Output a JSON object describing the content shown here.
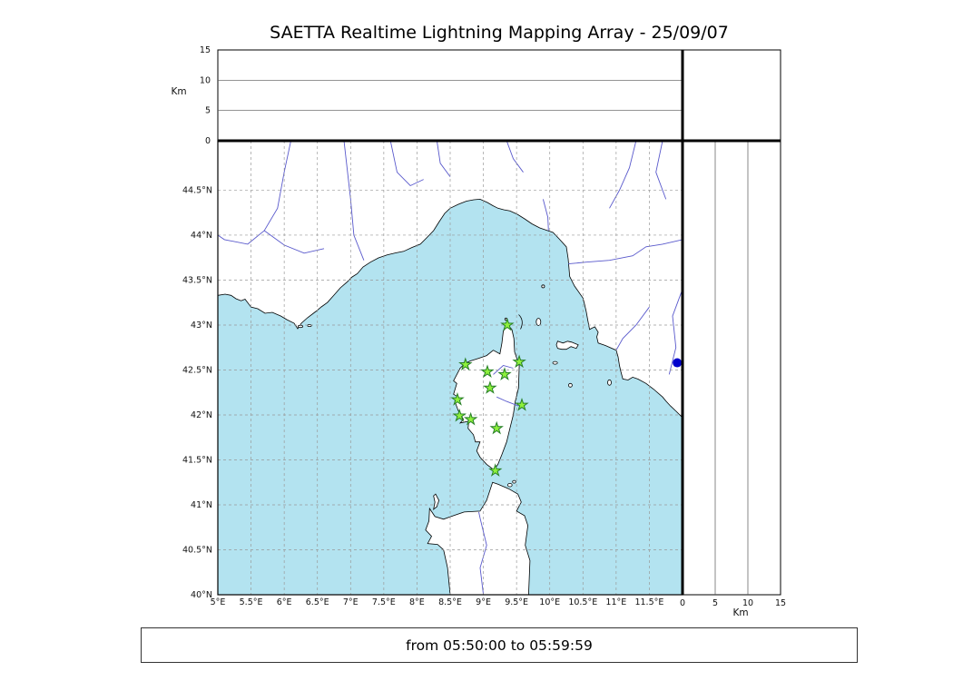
{
  "title": "SAETTA Realtime Lightning Mapping Array - 25/09/07",
  "footer": {
    "time_range": "from 05:50:00 to 05:59:59"
  },
  "altitude_axis": {
    "unit": "Km",
    "min": 0,
    "max": 15,
    "ticks": [
      {
        "value": 0,
        "label": "0"
      },
      {
        "value": 5,
        "label": "5"
      },
      {
        "value": 10,
        "label": "10"
      },
      {
        "value": 15,
        "label": "15"
      }
    ]
  },
  "map": {
    "lon_min": 5.0,
    "lon_max": 12.0,
    "lat_min": 40.0,
    "lat_max": 45.05,
    "lon_ticks": [
      {
        "value": 5.0,
        "label": "5°E"
      },
      {
        "value": 5.5,
        "label": "5.5°E"
      },
      {
        "value": 6.0,
        "label": "6°E"
      },
      {
        "value": 6.5,
        "label": "6.5°E"
      },
      {
        "value": 7.0,
        "label": "7°E"
      },
      {
        "value": 7.5,
        "label": "7.5°E"
      },
      {
        "value": 8.0,
        "label": "8°E"
      },
      {
        "value": 8.5,
        "label": "8.5°E"
      },
      {
        "value": 9.0,
        "label": "9°E"
      },
      {
        "value": 9.5,
        "label": "9.5°E"
      },
      {
        "value": 10.0,
        "label": "10°E"
      },
      {
        "value": 10.5,
        "label": "10.5°E"
      },
      {
        "value": 11.0,
        "label": "11°E"
      },
      {
        "value": 11.5,
        "label": "11.5°E"
      }
    ],
    "lat_ticks": [
      {
        "value": 40.0,
        "label": "40°N"
      },
      {
        "value": 40.5,
        "label": "40.5°N"
      },
      {
        "value": 41.0,
        "label": "41°N"
      },
      {
        "value": 41.5,
        "label": "41.5°N"
      },
      {
        "value": 42.0,
        "label": "42°N"
      },
      {
        "value": 42.5,
        "label": "42.5°N"
      },
      {
        "value": 43.0,
        "label": "43°N"
      },
      {
        "value": 43.5,
        "label": "43.5°N"
      },
      {
        "value": 44.0,
        "label": "44°N"
      },
      {
        "value": 44.5,
        "label": "44.5°N"
      }
    ],
    "colors": {
      "sea": "#b3e3f0",
      "land": "#ffffff",
      "coast": "#000000",
      "river": "#5959cc",
      "grid": "#999999"
    }
  },
  "stations": {
    "marker": "star",
    "fill": "#8ef03c",
    "stroke": "#267f26",
    "points": [
      {
        "lon": 9.36,
        "lat": 43.0
      },
      {
        "lon": 8.73,
        "lat": 42.56
      },
      {
        "lon": 9.06,
        "lat": 42.48
      },
      {
        "lon": 9.32,
        "lat": 42.45
      },
      {
        "lon": 9.54,
        "lat": 42.59
      },
      {
        "lon": 9.1,
        "lat": 42.3
      },
      {
        "lon": 8.61,
        "lat": 42.17
      },
      {
        "lon": 9.58,
        "lat": 42.11
      },
      {
        "lon": 8.64,
        "lat": 41.99
      },
      {
        "lon": 8.81,
        "lat": 41.95
      },
      {
        "lon": 9.2,
        "lat": 41.85
      },
      {
        "lon": 9.18,
        "lat": 41.38
      }
    ]
  },
  "sources": {
    "marker": "dot",
    "color": "#0000cd",
    "points": [
      {
        "lon": 11.92,
        "lat": 42.58
      }
    ]
  }
}
